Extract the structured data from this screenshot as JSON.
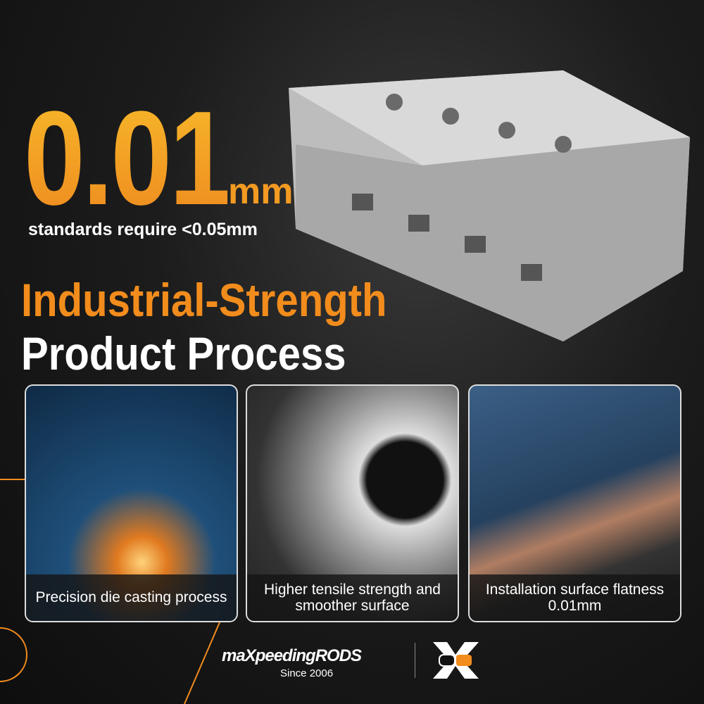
{
  "headline": {
    "value": "0.01",
    "unit": "mm",
    "subtitle": "standards require <0.05mm"
  },
  "title": {
    "line1": "Industrial-Strength",
    "line2": "Product Process"
  },
  "cards": [
    {
      "caption": "Precision die casting process"
    },
    {
      "caption": "Higher tensile strength and smoother surface"
    },
    {
      "caption": "Installation surface flatness 0.01mm"
    }
  ],
  "brand": {
    "name": "maXpeedingRODS",
    "since": "Since 2006",
    "accent": "#f28c1c"
  },
  "colors": {
    "orange": "#f28c1c",
    "background": "#111111"
  }
}
